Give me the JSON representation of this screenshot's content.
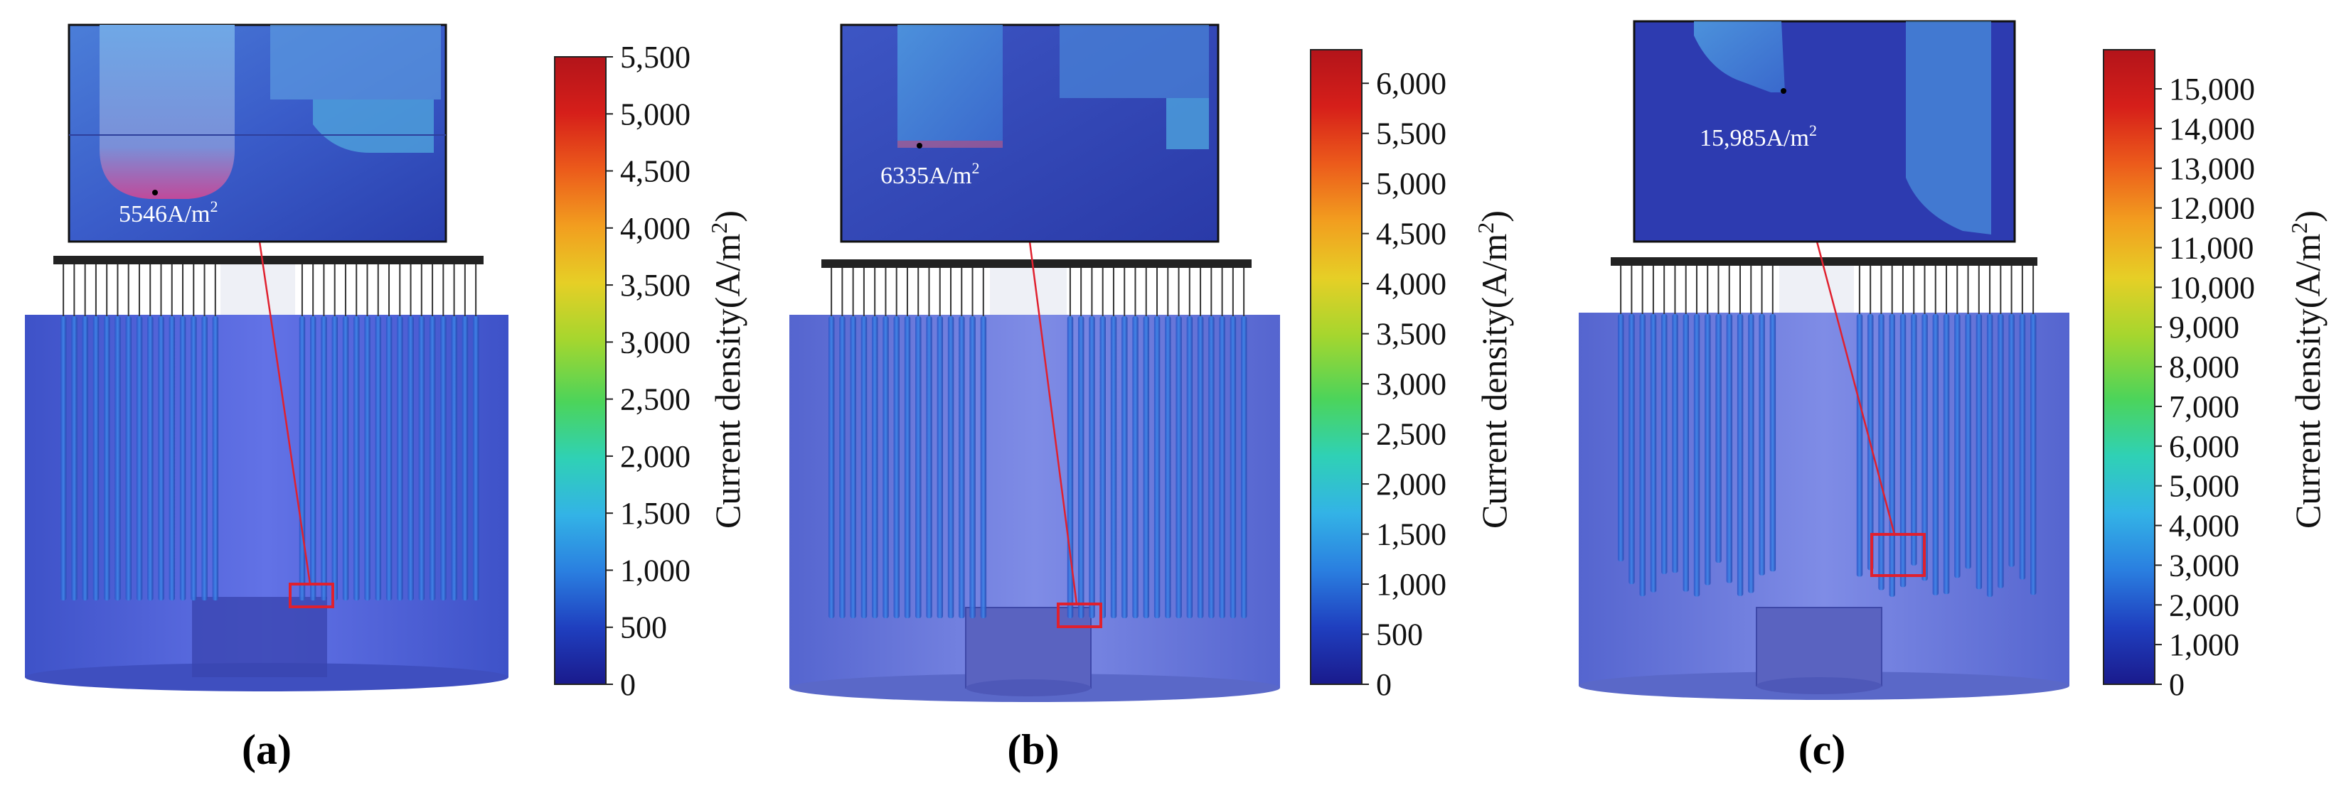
{
  "panels": [
    {
      "id": "a",
      "label": "(a)",
      "callout": "5546A/m",
      "callout_unit_power": "2",
      "colorbar": {
        "title": "Current density(A/m",
        "title_power": "2",
        "title_close": ")",
        "min": 0,
        "max": 5500,
        "ticks": [
          "0",
          "500",
          "1,000",
          "1,500",
          "2,000",
          "2,500",
          "3,000",
          "3,500",
          "4,000",
          "4,500",
          "5,000",
          "5,500"
        ]
      }
    },
    {
      "id": "b",
      "label": "(b)",
      "callout": "6335A/m",
      "callout_unit_power": "2",
      "colorbar": {
        "title": "Current density(A/m",
        "title_power": "2",
        "title_close": ")",
        "min": 0,
        "max": 6335,
        "ticks": [
          "0",
          "500",
          "1,000",
          "1,500",
          "2,000",
          "2,500",
          "3,000",
          "3,500",
          "4,000",
          "4,500",
          "5,000",
          "5,500",
          "6,000"
        ]
      }
    },
    {
      "id": "c",
      "label": "(c)",
      "callout": "15,985A/m",
      "callout_unit_power": "2",
      "colorbar": {
        "title": "Current density(A/m",
        "title_power": "2",
        "title_close": ")",
        "min": 0,
        "max": 15985,
        "ticks": [
          "0",
          "1,000",
          "2,000",
          "3,000",
          "4,000",
          "5,000",
          "6,000",
          "7,000",
          "8,000",
          "9,000",
          "10,000",
          "11,000",
          "12,000",
          "13,000",
          "14,000",
          "15,000"
        ]
      }
    }
  ],
  "colors": {
    "colormap": [
      "#1a1a8c",
      "#1f3fbf",
      "#2a7fe0",
      "#33b3e6",
      "#2fd1b5",
      "#4cd45a",
      "#a6d62e",
      "#e6cf26",
      "#f29e1f",
      "#ec5b1b",
      "#d61f1a",
      "#b3141a"
    ],
    "tank_body": "#4a5fd6",
    "tank_edge": "#2c3aa8",
    "zoom_box": "#e0202e"
  }
}
